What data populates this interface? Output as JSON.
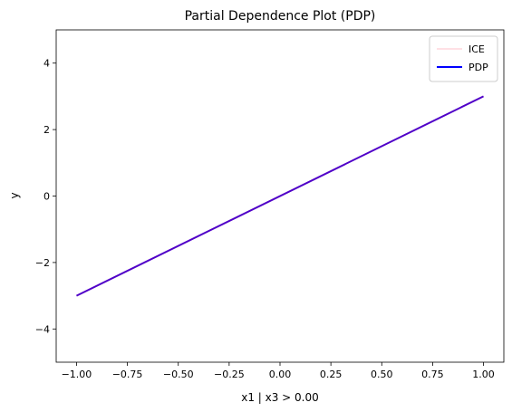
{
  "chart_data": {
    "type": "line",
    "title": "Partial Dependence Plot (PDP)",
    "xlabel": "x1 | x3 > 0.00",
    "ylabel": "y",
    "xlim": [
      -1.1,
      1.1
    ],
    "ylim": [
      -5,
      5
    ],
    "xticks": [
      -1.0,
      -0.75,
      -0.5,
      -0.25,
      0.0,
      0.25,
      0.5,
      0.75,
      1.0
    ],
    "xtick_labels": [
      "−1.00",
      "−0.75",
      "−0.50",
      "−0.25",
      "0.00",
      "0.25",
      "0.50",
      "0.75",
      "1.00"
    ],
    "yticks": [
      -4,
      -2,
      0,
      2,
      4
    ],
    "ytick_labels": [
      "−4",
      "−2",
      "0",
      "2",
      "4"
    ],
    "grid": false,
    "legend_position": "top-right",
    "series": [
      {
        "name": "ICE",
        "color": "#ffc0cb",
        "x": [
          -1.0,
          1.0
        ],
        "y": [
          -3.0,
          3.0
        ]
      },
      {
        "name": "PDP",
        "color": "#0000ff",
        "x": [
          -1.0,
          1.0
        ],
        "y": [
          -3.0,
          3.0
        ]
      }
    ],
    "overlap_color": "#5000c8"
  }
}
